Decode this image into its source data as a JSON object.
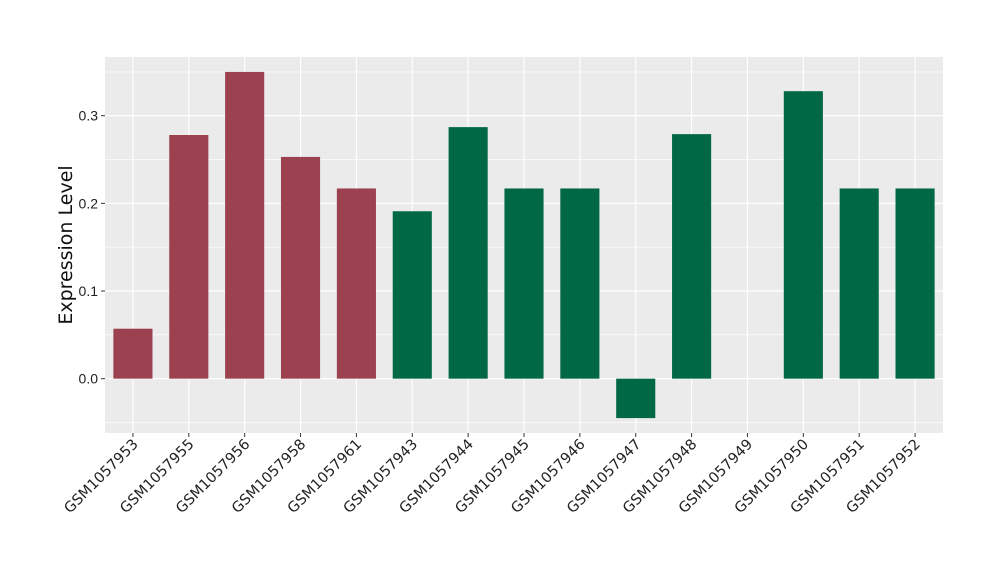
{
  "chart_data": {
    "type": "bar",
    "ylabel": "Expression Level",
    "xlabel": "",
    "title": "",
    "ylim": [
      -0.062,
      0.367
    ],
    "y_ticks": [
      0.0,
      0.1,
      0.2,
      0.3
    ],
    "y_tick_labels": [
      "0.0",
      "0.1",
      "0.2",
      "0.3"
    ],
    "grid": true,
    "panel_background": "#EBEBEB",
    "grid_color": "#FFFFFF",
    "colors": {
      "group1": "#9B414F",
      "group2": "#006845"
    },
    "categories": [
      "GSM1057953",
      "GSM1057955",
      "GSM1057956",
      "GSM1057958",
      "GSM1057961",
      "GSM1057943",
      "GSM1057944",
      "GSM1057945",
      "GSM1057946",
      "GSM1057947",
      "GSM1057948",
      "GSM1057949",
      "GSM1057950",
      "GSM1057951",
      "GSM1057952"
    ],
    "values": [
      0.057,
      0.278,
      0.35,
      0.253,
      0.217,
      0.191,
      0.287,
      0.217,
      0.217,
      -0.045,
      0.279,
      0.0,
      0.328,
      0.217,
      0.217
    ],
    "groups": [
      "group1",
      "group1",
      "group1",
      "group1",
      "group1",
      "group2",
      "group2",
      "group2",
      "group2",
      "group2",
      "group2",
      "group2",
      "group2",
      "group2",
      "group2"
    ]
  }
}
